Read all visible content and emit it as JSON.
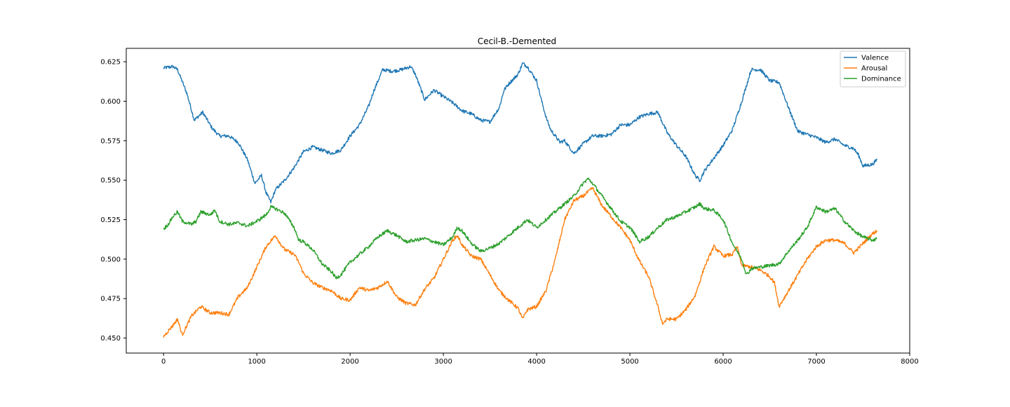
{
  "chart_data": {
    "type": "line",
    "title": "Cecil-B.-Demented",
    "xlabel": "",
    "ylabel": "",
    "xlim": [
      -400,
      8000
    ],
    "ylim": [
      0.4405,
      0.6335
    ],
    "x_ticks": [
      0,
      1000,
      2000,
      3000,
      4000,
      5000,
      6000,
      7000,
      8000
    ],
    "x_tick_labels": [
      "0",
      "1000",
      "2000",
      "3000",
      "4000",
      "5000",
      "6000",
      "7000",
      "8000"
    ],
    "y_ticks": [
      0.45,
      0.475,
      0.5,
      0.525,
      0.55,
      0.575,
      0.6,
      0.625
    ],
    "y_tick_labels": [
      "0.450",
      "0.475",
      "0.500",
      "0.525",
      "0.550",
      "0.575",
      "0.600",
      "0.625"
    ],
    "grid": false,
    "legend_position": "top-right",
    "series": [
      {
        "name": "Valence",
        "color": "#1f77b4",
        "x": [
          0,
          100,
          150,
          250,
          330,
          420,
          520,
          600,
          700,
          800,
          900,
          980,
          1050,
          1100,
          1150,
          1200,
          1300,
          1400,
          1500,
          1600,
          1700,
          1800,
          1900,
          2000,
          2100,
          2200,
          2250,
          2350,
          2450,
          2550,
          2650,
          2700,
          2800,
          2900,
          3000,
          3100,
          3200,
          3300,
          3400,
          3500,
          3600,
          3650,
          3700,
          3800,
          3850,
          3900,
          4000,
          4050,
          4100,
          4150,
          4250,
          4300,
          4400,
          4500,
          4600,
          4700,
          4800,
          4900,
          5000,
          5100,
          5200,
          5300,
          5400,
          5500,
          5600,
          5700,
          5750,
          5800,
          5900,
          6000,
          6100,
          6200,
          6250,
          6300,
          6400,
          6500,
          6600,
          6700,
          6800,
          6900,
          7000,
          7100,
          7200,
          7300,
          7400,
          7450,
          7500,
          7600,
          7650
        ],
        "values": [
          0.621,
          0.622,
          0.62,
          0.605,
          0.588,
          0.593,
          0.583,
          0.578,
          0.578,
          0.574,
          0.563,
          0.548,
          0.553,
          0.542,
          0.536,
          0.544,
          0.55,
          0.558,
          0.568,
          0.571,
          0.569,
          0.567,
          0.569,
          0.578,
          0.585,
          0.597,
          0.606,
          0.62,
          0.619,
          0.62,
          0.622,
          0.617,
          0.601,
          0.607,
          0.603,
          0.599,
          0.594,
          0.592,
          0.588,
          0.587,
          0.596,
          0.607,
          0.611,
          0.617,
          0.624,
          0.622,
          0.613,
          0.601,
          0.59,
          0.582,
          0.574,
          0.575,
          0.567,
          0.573,
          0.578,
          0.578,
          0.579,
          0.585,
          0.585,
          0.59,
          0.592,
          0.593,
          0.58,
          0.572,
          0.565,
          0.553,
          0.55,
          0.556,
          0.564,
          0.572,
          0.582,
          0.6,
          0.61,
          0.62,
          0.62,
          0.613,
          0.612,
          0.596,
          0.581,
          0.579,
          0.577,
          0.574,
          0.576,
          0.572,
          0.57,
          0.566,
          0.559,
          0.56,
          0.563
        ]
      },
      {
        "name": "Arousal",
        "color": "#ff7f0e",
        "x": [
          0,
          100,
          150,
          200,
          250,
          300,
          400,
          500,
          600,
          700,
          800,
          900,
          1000,
          1100,
          1200,
          1250,
          1300,
          1400,
          1450,
          1500,
          1600,
          1700,
          1800,
          1900,
          2000,
          2100,
          2200,
          2300,
          2400,
          2500,
          2600,
          2700,
          2800,
          2900,
          3000,
          3100,
          3150,
          3200,
          3300,
          3400,
          3500,
          3600,
          3700,
          3800,
          3850,
          3900,
          4000,
          4100,
          4200,
          4300,
          4400,
          4500,
          4600,
          4700,
          4800,
          4900,
          5000,
          5100,
          5200,
          5300,
          5350,
          5400,
          5500,
          5600,
          5700,
          5800,
          5900,
          6000,
          6100,
          6150,
          6200,
          6300,
          6400,
          6500,
          6550,
          6600,
          6700,
          6800,
          6900,
          7000,
          7100,
          7200,
          7300,
          7400,
          7500,
          7600,
          7650
        ],
        "values": [
          0.451,
          0.458,
          0.462,
          0.452,
          0.458,
          0.464,
          0.47,
          0.466,
          0.466,
          0.465,
          0.476,
          0.482,
          0.495,
          0.508,
          0.515,
          0.51,
          0.506,
          0.503,
          0.498,
          0.491,
          0.485,
          0.482,
          0.48,
          0.475,
          0.474,
          0.482,
          0.48,
          0.482,
          0.486,
          0.476,
          0.472,
          0.471,
          0.481,
          0.488,
          0.5,
          0.512,
          0.515,
          0.509,
          0.502,
          0.5,
          0.49,
          0.48,
          0.474,
          0.469,
          0.462,
          0.468,
          0.47,
          0.48,
          0.5,
          0.525,
          0.537,
          0.54,
          0.545,
          0.534,
          0.527,
          0.52,
          0.512,
          0.499,
          0.489,
          0.47,
          0.459,
          0.462,
          0.462,
          0.468,
          0.477,
          0.495,
          0.508,
          0.502,
          0.503,
          0.508,
          0.496,
          0.495,
          0.493,
          0.489,
          0.485,
          0.47,
          0.48,
          0.49,
          0.5,
          0.508,
          0.512,
          0.512,
          0.51,
          0.504,
          0.51,
          0.516,
          0.518
        ]
      },
      {
        "name": "Dominance",
        "color": "#2ca02c",
        "x": [
          0,
          50,
          100,
          150,
          200,
          300,
          350,
          400,
          500,
          550,
          600,
          700,
          800,
          900,
          1000,
          1100,
          1150,
          1200,
          1300,
          1400,
          1450,
          1500,
          1600,
          1700,
          1800,
          1850,
          1900,
          2000,
          2100,
          2200,
          2300,
          2400,
          2500,
          2600,
          2700,
          2800,
          2900,
          3000,
          3100,
          3150,
          3200,
          3300,
          3400,
          3500,
          3600,
          3700,
          3800,
          3900,
          4000,
          4100,
          4200,
          4300,
          4400,
          4500,
          4550,
          4600,
          4700,
          4800,
          4900,
          5000,
          5050,
          5100,
          5200,
          5300,
          5400,
          5500,
          5600,
          5700,
          5750,
          5800,
          5900,
          6000,
          6100,
          6200,
          6250,
          6300,
          6400,
          6500,
          6600,
          6700,
          6800,
          6900,
          7000,
          7100,
          7200,
          7300,
          7400,
          7500,
          7600,
          7650
        ],
        "values": [
          0.519,
          0.522,
          0.527,
          0.53,
          0.524,
          0.522,
          0.524,
          0.53,
          0.528,
          0.531,
          0.524,
          0.522,
          0.523,
          0.521,
          0.524,
          0.528,
          0.533,
          0.532,
          0.529,
          0.52,
          0.512,
          0.511,
          0.506,
          0.497,
          0.492,
          0.488,
          0.49,
          0.498,
          0.503,
          0.508,
          0.514,
          0.518,
          0.515,
          0.511,
          0.512,
          0.513,
          0.511,
          0.509,
          0.514,
          0.52,
          0.518,
          0.51,
          0.505,
          0.507,
          0.51,
          0.515,
          0.52,
          0.525,
          0.52,
          0.525,
          0.53,
          0.535,
          0.54,
          0.548,
          0.551,
          0.548,
          0.54,
          0.532,
          0.524,
          0.52,
          0.516,
          0.511,
          0.514,
          0.52,
          0.525,
          0.527,
          0.53,
          0.533,
          0.535,
          0.532,
          0.531,
          0.525,
          0.51,
          0.5,
          0.49,
          0.494,
          0.495,
          0.496,
          0.497,
          0.505,
          0.512,
          0.52,
          0.533,
          0.53,
          0.532,
          0.524,
          0.518,
          0.514,
          0.512,
          0.513
        ]
      }
    ]
  }
}
